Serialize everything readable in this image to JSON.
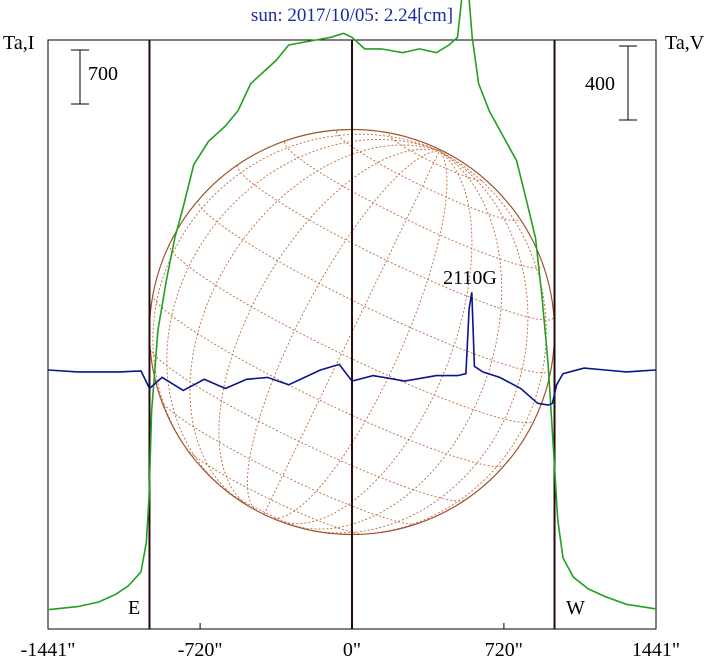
{
  "chart_data": {
    "type": "line",
    "title": "sun: 2017/10/05: 2.24[cm]",
    "left_axis_label": "Ta,I",
    "right_axis_label": "Ta,V",
    "left_scale_bar_label": "700",
    "right_scale_bar_label": "400",
    "annotation": "2110G",
    "limb_labels": {
      "east": "E",
      "west": "W"
    },
    "xlim": [
      -1441,
      1441
    ],
    "x_ticks": [
      {
        "value": -1441,
        "label": "-1441\""
      },
      {
        "value": -720,
        "label": "-720\""
      },
      {
        "value": 0,
        "label": "0\""
      },
      {
        "value": 720,
        "label": "720\""
      },
      {
        "value": 1441,
        "label": "1441\""
      }
    ],
    "vertical_lines": [
      -960,
      0,
      960
    ],
    "solar_disk_radius_arcsec": 960,
    "grid": false,
    "series": [
      {
        "color": "#22a022",
        "x": [
          -1441,
          -1300,
          -1200,
          -1120,
          -1060,
          -1000,
          -975,
          -962,
          -950,
          -920,
          -880,
          -840,
          -800,
          -750,
          -680,
          -600,
          -540,
          -480,
          -420,
          -360,
          -300,
          -200,
          -100,
          -40,
          0,
          60,
          140,
          240,
          320,
          400,
          460,
          500,
          520,
          540,
          555,
          570,
          600,
          650,
          720,
          780,
          830,
          870,
          900,
          930,
          955,
          975,
          1000,
          1050,
          1120,
          1200,
          1300,
          1441
        ],
        "y": [
          30,
          70,
          130,
          230,
          340,
          520,
          900,
          1500,
          2600,
          3650,
          4300,
          4850,
          5250,
          5800,
          6100,
          6300,
          6500,
          6850,
          7000,
          7150,
          7350,
          7400,
          7450,
          7500,
          7450,
          7300,
          7300,
          7250,
          7300,
          7250,
          7350,
          7450,
          7950,
          10000,
          7950,
          7450,
          6850,
          6500,
          6150,
          5850,
          5300,
          4850,
          4100,
          3200,
          2100,
          1200,
          700,
          450,
          300,
          200,
          100,
          40
        ],
        "unit": "Ta,I"
      },
      {
        "color": "#0a148c",
        "x": [
          -1441,
          -1300,
          -1100,
          -1000,
          -960,
          -900,
          -800,
          -700,
          -600,
          -500,
          -400,
          -300,
          -150,
          -60,
          0,
          100,
          250,
          400,
          500,
          540,
          555,
          568,
          580,
          620,
          700,
          800,
          880,
          930,
          950,
          970,
          1000,
          1100,
          1200,
          1300,
          1441
        ],
        "y": [
          0,
          -10,
          -10,
          -5,
          -100,
          -40,
          -110,
          -50,
          -100,
          -50,
          -40,
          -80,
          0,
          30,
          -60,
          -30,
          -60,
          -30,
          -30,
          -20,
          330,
          420,
          20,
          -10,
          -40,
          -100,
          -180,
          -190,
          -180,
          -80,
          -20,
          10,
          0,
          -10,
          0
        ],
        "unit": "Ta,V"
      }
    ]
  }
}
